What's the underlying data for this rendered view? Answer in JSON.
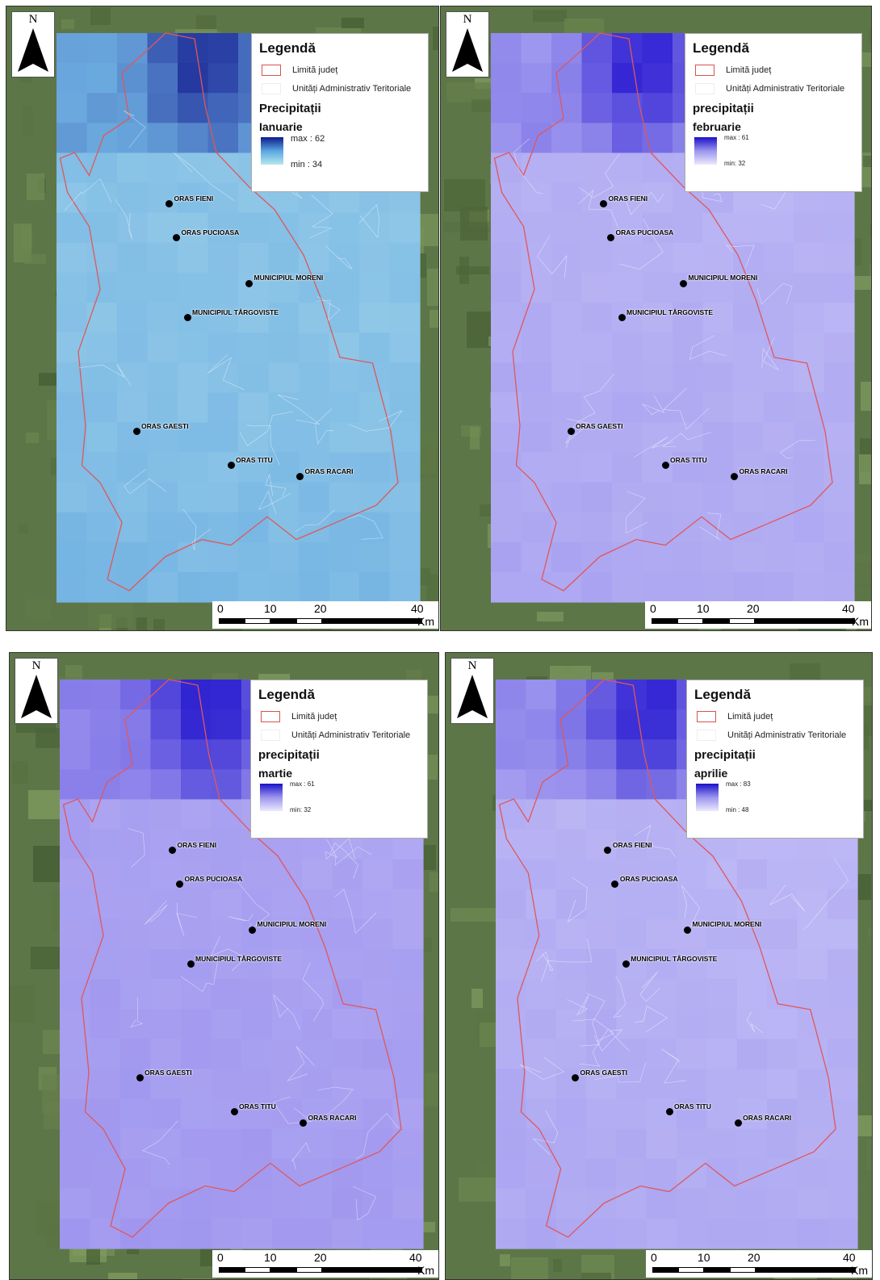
{
  "legend": {
    "title": "Legendă",
    "boundary_label": "Limită județ",
    "units_label": "Unități Administrativ Teritoriale"
  },
  "towns": [
    {
      "name": "ORAS FIENI"
    },
    {
      "name": "ORAS PUCIOASA"
    },
    {
      "name": "MUNICIPIUL  MORENI"
    },
    {
      "name": "MUNICIPIUL TÂRGOVISTE"
    },
    {
      "name": "ORAS GAESTI"
    },
    {
      "name": "ORAS TITU"
    },
    {
      "name": "ORAS RACARI"
    }
  ],
  "north_label": "N",
  "scale": {
    "ticks": [
      "0",
      "10",
      "20",
      "40"
    ],
    "unit": "Km"
  },
  "maps": [
    {
      "variable": "Precipitații",
      "month": "Ianuarie",
      "max_label": "max : 62",
      "min_label": "min : 34",
      "colors": {
        "high": "#0d1a8a",
        "mid": "#5aa6e2",
        "low": "#b6e7ee"
      },
      "map_colors": {
        "high": "#1a2796",
        "mid": "#6fb0e2",
        "low": "#b9e5ee"
      }
    },
    {
      "variable": "precipitații",
      "month": "februarie",
      "max_label": "max : 61",
      "min_label": "min: 32",
      "colors": {
        "high": "#1a10c8",
        "mid": "#9c95ee",
        "low": "#ebe9fc"
      },
      "map_colors": {
        "high": "#2212d0",
        "mid": "#a39cf0",
        "low": "#d6d3f8"
      }
    },
    {
      "variable": "precipitații",
      "month": "martie",
      "max_label": "max : 61",
      "min_label": "min: 32",
      "colors": {
        "high": "#1a10c8",
        "mid": "#9c95ee",
        "low": "#ebe9fc"
      },
      "map_colors": {
        "high": "#1e12cc",
        "mid": "#9a90ee",
        "low": "#c5c0f5"
      }
    },
    {
      "variable": "precipitații",
      "month": "aprilie",
      "max_label": "max : 83",
      "min_label": "min : 48",
      "colors": {
        "high": "#1a10c8",
        "mid": "#9c95ee",
        "low": "#ebe9fc"
      },
      "map_colors": {
        "high": "#2214d0",
        "mid": "#a59ef0",
        "low": "#d8d5fa"
      }
    }
  ]
}
